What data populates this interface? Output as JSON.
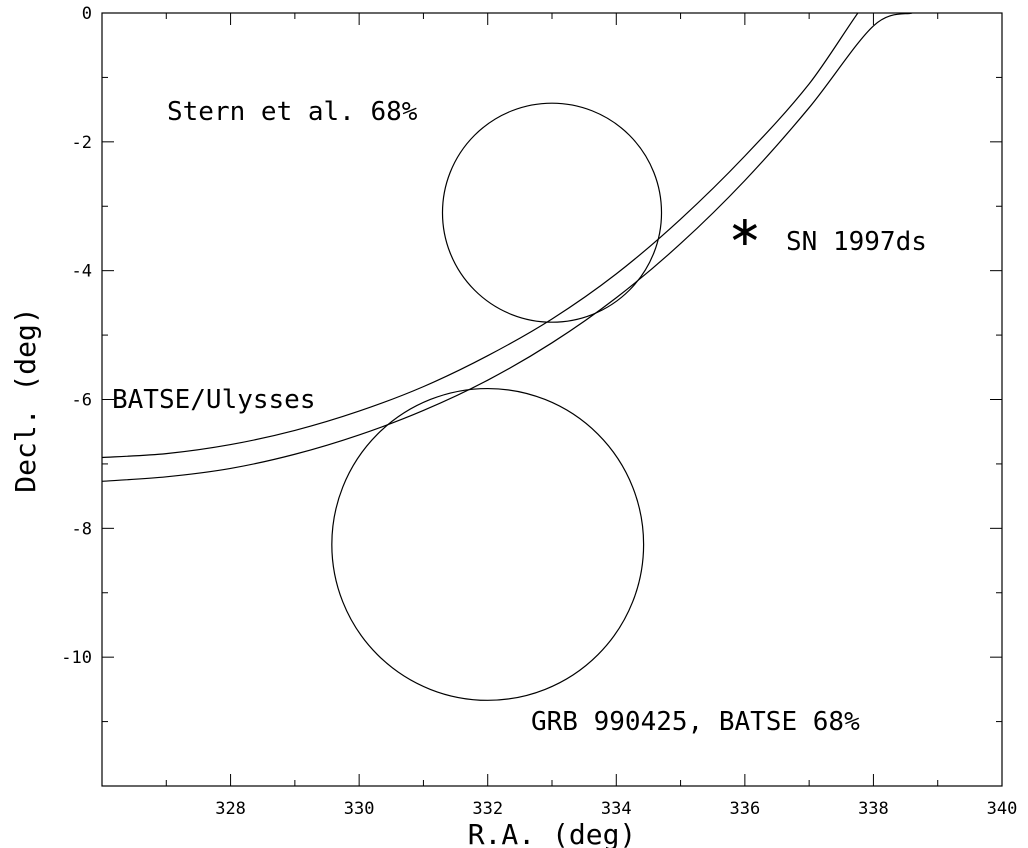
{
  "chart_data": {
    "type": "scatter",
    "xlabel": "R.A. (deg)",
    "ylabel": "Decl. (deg)",
    "xlim": [
      326,
      340
    ],
    "ylim": [
      -12,
      0
    ],
    "x_ticks": [
      328,
      330,
      332,
      334,
      336,
      338,
      340
    ],
    "y_ticks": [
      0,
      -2,
      -4,
      -6,
      -8,
      -10
    ],
    "grid": false,
    "circles": [
      {
        "label": "Stern et al. 68%",
        "center_ra": 333.0,
        "center_dec": -3.1,
        "radius_dec": 1.7
      },
      {
        "label": "GRB 990425, BATSE 68%",
        "center_ra": 332.0,
        "center_dec": -8.25,
        "radius_dec": 2.42
      }
    ],
    "annulus": {
      "label": "BATSE/Ulysses",
      "edges": [
        {
          "ra": [
            326,
            327,
            328,
            329,
            330,
            331,
            332,
            333,
            334,
            335,
            336,
            337,
            338,
            338.25
          ],
          "dec": [
            -6.9,
            -6.84,
            -6.7,
            -6.48,
            -6.18,
            -5.8,
            -5.32,
            -4.75,
            -4.05,
            -3.2,
            -2.22,
            -1.1,
            0.3,
            0.0
          ]
        },
        {
          "ra": [
            326,
            327,
            328,
            329,
            330,
            331,
            332,
            333,
            334,
            335,
            336,
            337,
            338,
            338.6
          ],
          "dec": [
            -7.27,
            -7.2,
            -7.07,
            -6.85,
            -6.55,
            -6.17,
            -5.7,
            -5.12,
            -4.42,
            -3.58,
            -2.6,
            -1.47,
            -0.2,
            0.0
          ]
        }
      ]
    },
    "point": {
      "label": "SN 1997ds",
      "ra": 336.0,
      "dec": -3.4,
      "marker": "asterisk"
    }
  }
}
